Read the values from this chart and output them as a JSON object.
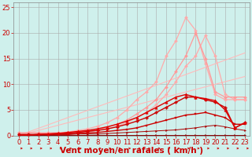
{
  "background_color": "#cff0ec",
  "grid_color": "#aaaaaa",
  "xlabel": "Vent moyen/en rafales ( km/h )",
  "xlabel_color": "#cc0000",
  "xlabel_fontsize": 7.5,
  "tick_color": "#cc0000",
  "tick_fontsize": 6,
  "xlim": [
    -0.5,
    23.5
  ],
  "ylim": [
    0,
    26
  ],
  "yticks": [
    0,
    5,
    10,
    15,
    20,
    25
  ],
  "xticks": [
    0,
    1,
    2,
    3,
    4,
    5,
    6,
    7,
    8,
    9,
    10,
    11,
    12,
    13,
    14,
    15,
    16,
    17,
    18,
    19,
    20,
    21,
    22,
    23
  ],
  "lines": [
    {
      "x": [
        0,
        1,
        2,
        3,
        4,
        5,
        6,
        7,
        8,
        9,
        10,
        11,
        12,
        13,
        14,
        15,
        16,
        17,
        18,
        19,
        20,
        21,
        22,
        23
      ],
      "y": [
        0.0,
        0.5,
        1.0,
        1.5,
        2.0,
        2.5,
        3.0,
        3.5,
        4.0,
        4.5,
        5.0,
        5.5,
        6.0,
        6.5,
        7.0,
        7.5,
        8.0,
        8.5,
        9.0,
        9.5,
        10.0,
        10.5,
        11.0,
        11.5
      ],
      "color": "#ffbbbb",
      "linewidth": 0.8,
      "marker": null,
      "markersize": 0
    },
    {
      "x": [
        0,
        1,
        2,
        3,
        4,
        5,
        6,
        7,
        8,
        9,
        10,
        11,
        12,
        13,
        14,
        15,
        16,
        17,
        18,
        19,
        20,
        21,
        22,
        23
      ],
      "y": [
        0.0,
        0.7,
        1.4,
        2.1,
        2.8,
        3.5,
        4.2,
        4.9,
        5.6,
        6.3,
        7.0,
        7.7,
        8.4,
        9.1,
        9.8,
        10.5,
        11.2,
        11.9,
        12.6,
        13.3,
        14.0,
        14.7,
        15.4,
        16.1
      ],
      "color": "#ffbbbb",
      "linewidth": 0.8,
      "marker": null,
      "markersize": 0
    },
    {
      "x": [
        0,
        1,
        2,
        3,
        4,
        5,
        6,
        7,
        8,
        9,
        10,
        11,
        12,
        13,
        14,
        15,
        16,
        17,
        18,
        19,
        20,
        21,
        22,
        23
      ],
      "y": [
        0.5,
        0.5,
        0.5,
        0.5,
        0.5,
        0.6,
        0.7,
        0.8,
        1.0,
        1.2,
        1.8,
        2.5,
        3.5,
        4.5,
        6.0,
        8.0,
        10.5,
        13.5,
        15.5,
        19.5,
        15.5,
        8.0,
        7.0,
        7.0
      ],
      "color": "#ffaaaa",
      "linewidth": 0.9,
      "marker": "D",
      "markersize": 2
    },
    {
      "x": [
        0,
        1,
        2,
        3,
        4,
        5,
        6,
        7,
        8,
        9,
        10,
        11,
        12,
        13,
        14,
        15,
        16,
        17,
        18,
        19,
        20,
        21,
        22,
        23
      ],
      "y": [
        0.5,
        0.5,
        0.5,
        0.5,
        0.5,
        0.7,
        1.0,
        1.3,
        1.8,
        2.5,
        3.5,
        5.0,
        7.0,
        8.5,
        10.5,
        15.5,
        18.5,
        23.0,
        20.5,
        14.0,
        8.0,
        7.0,
        7.0,
        7.0
      ],
      "color": "#ffaaaa",
      "linewidth": 0.9,
      "marker": "D",
      "markersize": 2
    },
    {
      "x": [
        0,
        1,
        2,
        3,
        4,
        5,
        6,
        7,
        8,
        9,
        10,
        11,
        12,
        13,
        14,
        15,
        16,
        17,
        18,
        19,
        20,
        21,
        22,
        23
      ],
      "y": [
        0.5,
        0.5,
        0.5,
        0.5,
        0.5,
        0.6,
        0.7,
        0.9,
        1.2,
        1.6,
        2.2,
        3.0,
        4.2,
        5.5,
        7.0,
        9.5,
        12.5,
        15.5,
        20.0,
        15.0,
        8.5,
        7.5,
        7.5,
        7.5
      ],
      "color": "#ff9999",
      "linewidth": 0.9,
      "marker": "D",
      "markersize": 2
    },
    {
      "x": [
        0,
        1,
        2,
        3,
        4,
        5,
        6,
        7,
        8,
        9,
        10,
        11,
        12,
        13,
        14,
        15,
        16,
        17,
        18,
        19,
        20,
        21,
        22,
        23
      ],
      "y": [
        0.1,
        0.1,
        0.1,
        0.1,
        0.1,
        0.1,
        0.1,
        0.1,
        0.1,
        0.1,
        0.1,
        0.1,
        0.1,
        0.1,
        0.1,
        0.1,
        0.1,
        0.1,
        0.1,
        0.1,
        0.1,
        0.1,
        0.1,
        0.1
      ],
      "color": "#880000",
      "linewidth": 0.7,
      "marker": ">",
      "markersize": 1.5
    },
    {
      "x": [
        0,
        1,
        2,
        3,
        4,
        5,
        6,
        7,
        8,
        9,
        10,
        11,
        12,
        13,
        14,
        15,
        16,
        17,
        18,
        19,
        20,
        21,
        22,
        23
      ],
      "y": [
        0.2,
        0.2,
        0.2,
        0.2,
        0.2,
        0.2,
        0.3,
        0.3,
        0.3,
        0.4,
        0.5,
        0.6,
        0.7,
        0.8,
        0.9,
        1.0,
        1.1,
        1.3,
        1.5,
        1.8,
        2.0,
        1.7,
        1.3,
        1.0
      ],
      "color": "#aa0000",
      "linewidth": 0.7,
      "marker": ">",
      "markersize": 1.5
    },
    {
      "x": [
        0,
        1,
        2,
        3,
        4,
        5,
        6,
        7,
        8,
        9,
        10,
        11,
        12,
        13,
        14,
        15,
        16,
        17,
        18,
        19,
        20,
        21,
        22,
        23
      ],
      "y": [
        0.2,
        0.2,
        0.2,
        0.3,
        0.4,
        0.5,
        0.6,
        0.8,
        1.0,
        1.3,
        1.7,
        2.2,
        2.8,
        3.5,
        4.5,
        5.5,
        6.5,
        7.5,
        7.5,
        7.0,
        6.5,
        5.5,
        1.5,
        2.5
      ],
      "color": "#cc0000",
      "linewidth": 1.0,
      "marker": "P",
      "markersize": 2.5
    },
    {
      "x": [
        0,
        1,
        2,
        3,
        4,
        5,
        6,
        7,
        8,
        9,
        10,
        11,
        12,
        13,
        14,
        15,
        16,
        17,
        18,
        19,
        20,
        21,
        22,
        23
      ],
      "y": [
        0.1,
        0.1,
        0.2,
        0.2,
        0.3,
        0.3,
        0.4,
        0.5,
        0.6,
        0.8,
        1.0,
        1.2,
        1.5,
        2.0,
        2.5,
        3.0,
        3.5,
        4.0,
        4.2,
        4.5,
        4.0,
        3.5,
        2.2,
        2.2
      ],
      "color": "#cc0000",
      "linewidth": 1.0,
      "marker": "s",
      "markersize": 2
    },
    {
      "x": [
        0,
        1,
        2,
        3,
        4,
        5,
        6,
        7,
        8,
        9,
        10,
        11,
        12,
        13,
        14,
        15,
        16,
        17,
        18,
        19,
        20,
        21,
        22,
        23
      ],
      "y": [
        0.1,
        0.1,
        0.2,
        0.3,
        0.4,
        0.6,
        0.8,
        1.0,
        1.3,
        1.7,
        2.2,
        2.8,
        3.5,
        4.5,
        5.5,
        6.5,
        7.5,
        8.0,
        7.5,
        7.2,
        6.8,
        5.0,
        1.5,
        2.5
      ],
      "color": "#dd0000",
      "linewidth": 1.0,
      "marker": "^",
      "markersize": 2.5
    }
  ]
}
